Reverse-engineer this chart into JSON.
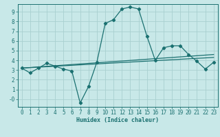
{
  "title": "",
  "xlabel": "Humidex (Indice chaleur)",
  "bg_color": "#c8e8e8",
  "line_color": "#1a7070",
  "grid_color": "#a8d0d0",
  "xlim": [
    -0.5,
    23.5
  ],
  "ylim": [
    -0.8,
    9.8
  ],
  "xticks": [
    0,
    1,
    2,
    3,
    4,
    5,
    6,
    7,
    8,
    9,
    10,
    11,
    12,
    13,
    14,
    15,
    16,
    17,
    18,
    19,
    20,
    21,
    22,
    23
  ],
  "yticks": [
    0,
    1,
    2,
    3,
    4,
    5,
    6,
    7,
    8,
    9
  ],
  "ytick_labels": [
    "-0",
    "1",
    "2",
    "3",
    "4",
    "5",
    "6",
    "7",
    "8",
    "9"
  ],
  "line1_x": [
    0,
    1,
    2,
    3,
    4,
    5,
    6,
    7,
    8,
    9,
    10,
    11,
    12,
    13,
    14,
    15,
    16,
    17,
    18,
    19,
    20,
    21,
    22,
    23
  ],
  "line1_y": [
    3.2,
    2.7,
    3.2,
    3.7,
    3.4,
    3.1,
    2.9,
    -0.4,
    1.3,
    3.8,
    7.8,
    8.2,
    9.3,
    9.5,
    9.3,
    6.5,
    4.0,
    5.3,
    5.5,
    5.5,
    4.6,
    3.9,
    3.1,
    3.8
  ],
  "line2_x": [
    0,
    23
  ],
  "line2_y": [
    3.2,
    4.6
  ],
  "line3_x": [
    0,
    23
  ],
  "line3_y": [
    3.2,
    4.3
  ]
}
